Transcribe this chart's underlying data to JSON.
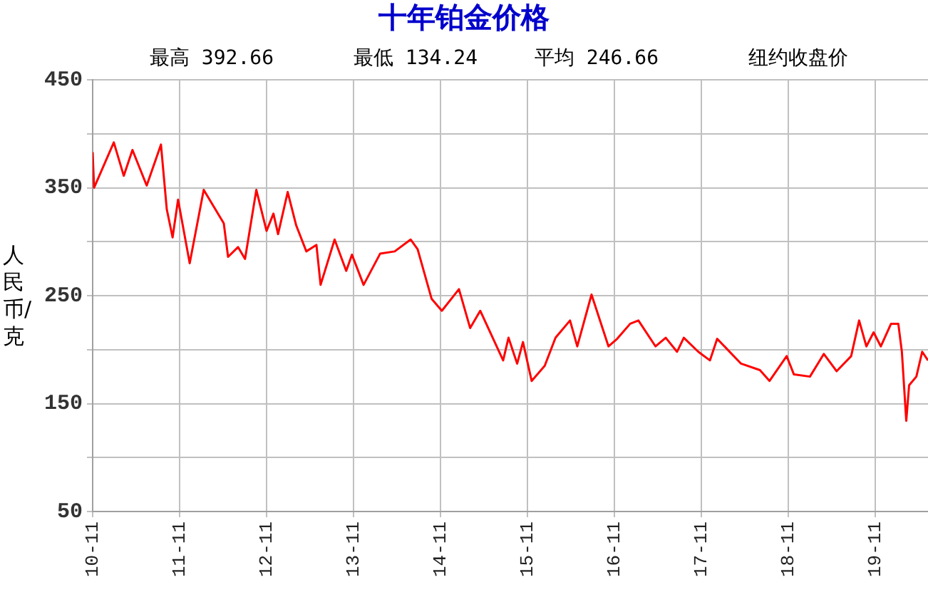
{
  "chart_data": {
    "type": "line",
    "title": "十年铂金价格",
    "ylabel": "人民币/克",
    "annotations": [
      "最高 392.66",
      "最低 134.24",
      "平均 246.66",
      "纽约收盘价"
    ],
    "x": [
      "2010-11-01",
      "2010-11-07",
      "2011-01-29",
      "2011-03-10",
      "2011-04-16",
      "2011-06-15",
      "2011-08-14",
      "2011-09-08",
      "2011-10-02",
      "2011-10-25",
      "2011-12-13",
      "2012-02-11",
      "2012-05-04",
      "2012-05-22",
      "2012-07-03",
      "2012-08-02",
      "2012-09-19",
      "2012-11-01",
      "2012-11-30",
      "2012-12-19",
      "2013-01-29",
      "2013-03-04",
      "2013-04-16",
      "2013-05-28",
      "2013-06-15",
      "2013-08-13",
      "2013-10-01",
      "2013-10-25",
      "2013-12-13",
      "2014-02-22",
      "2014-04-22",
      "2014-06-28",
      "2014-07-27",
      "2014-09-25",
      "2014-11-07",
      "2015-01-18",
      "2015-03-04",
      "2015-04-16",
      "2015-07-21",
      "2015-08-13",
      "2015-09-19",
      "2015-10-13",
      "2015-11-19",
      "2016-01-13",
      "2016-02-28",
      "2016-04-28",
      "2016-05-28",
      "2016-07-27",
      "2016-10-07",
      "2016-11-13",
      "2017-01-07",
      "2017-02-11",
      "2017-04-22",
      "2017-06-04",
      "2017-07-21",
      "2017-08-19",
      "2017-10-19",
      "2017-12-07",
      "2018-01-07",
      "2018-04-16",
      "2018-07-04",
      "2018-08-14",
      "2018-10-25",
      "2018-11-25",
      "2019-02-01",
      "2019-03-29",
      "2019-05-22",
      "2019-07-22",
      "2019-08-25",
      "2019-09-25",
      "2019-10-25",
      "2019-11-25",
      "2020-01-07",
      "2020-02-07",
      "2020-02-22",
      "2020-03-10",
      "2020-03-22",
      "2020-04-22",
      "2020-05-16",
      "2020-06-10"
    ],
    "series": [
      {
        "color": "#ff0000",
        "values": [
          383,
          350,
          392,
          361,
          385,
          352,
          390,
          330,
          304,
          339,
          280,
          348,
          317,
          286,
          295,
          284,
          348,
          310,
          326,
          307,
          346,
          315,
          291,
          297,
          260,
          302,
          273,
          288,
          260,
          289,
          291,
          302,
          293,
          247,
          236,
          256,
          220,
          236,
          190,
          211,
          187,
          207,
          171,
          185,
          211,
          227,
          203,
          251,
          203,
          210,
          224,
          227,
          203,
          211,
          198,
          211,
          198,
          190,
          210,
          187,
          181,
          171,
          194,
          177,
          175,
          196,
          180,
          194,
          227,
          203,
          216,
          203,
          224,
          224,
          198,
          134,
          167,
          175,
          198,
          190
        ]
      }
    ],
    "xlim": [
      "2010-11-01",
      "2020-06-10"
    ],
    "xticks": [
      {
        "value": "2010-11",
        "label": "10-11"
      },
      {
        "value": "2011-11",
        "label": "11-11"
      },
      {
        "value": "2012-11",
        "label": "12-11"
      },
      {
        "value": "2013-11",
        "label": "13-11"
      },
      {
        "value": "2014-11",
        "label": "14-11"
      },
      {
        "value": "2015-11",
        "label": "15-11"
      },
      {
        "value": "2016-11",
        "label": "16-11"
      },
      {
        "value": "2017-11",
        "label": "17-11"
      },
      {
        "value": "2018-11",
        "label": "18-11"
      },
      {
        "value": "2019-11",
        "label": "19-11"
      }
    ],
    "ylim": [
      50,
      450
    ],
    "yticks": [
      50,
      {
        "value": 100,
        "label": null
      },
      150,
      {
        "value": 200,
        "label": null
      },
      250,
      {
        "value": 300,
        "label": null
      },
      350,
      {
        "value": 400,
        "label": null
      },
      450
    ],
    "grid": true,
    "legend": false,
    "marker": "none",
    "line_style": "solid"
  }
}
